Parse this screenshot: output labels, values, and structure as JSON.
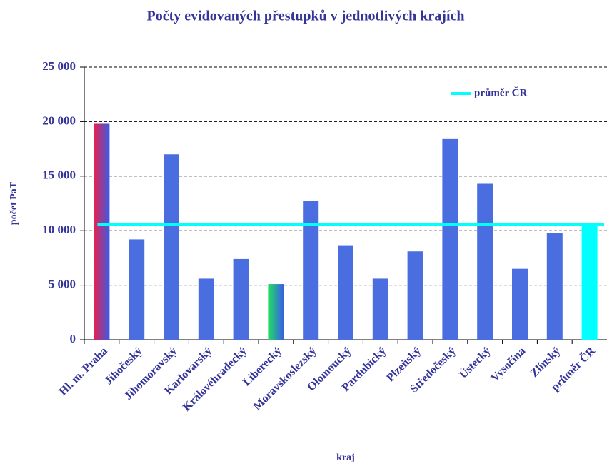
{
  "chart_data": {
    "type": "bar",
    "title": "Počty evidovaných přestupků v jednotlivých krajích",
    "x_label": "kraj",
    "y_label": "počet PaT",
    "categories": [
      "Hl. m. Praha",
      "Jihočeský",
      "Jihomoravský",
      "Karlovarský",
      "Královéhradecký",
      "Liberecký",
      "Moravskoslezský",
      "Olomoucký",
      "Pardubický",
      "Plzeňský",
      "Středočeský",
      "Ústecký",
      "Vysočina",
      "Zlínský",
      "průměr ČR"
    ],
    "values": [
      19800,
      9200,
      17000,
      5600,
      7400,
      5100,
      12700,
      8600,
      5600,
      8100,
      18400,
      14300,
      6500,
      9800,
      10600
    ],
    "colors": [
      [
        "#3a5ae8",
        "#e8204a"
      ],
      "#4a6ee0",
      "#4a6ee0",
      "#4a6ee0",
      "#4a6ee0",
      [
        "#3a5ae8",
        "#20e060"
      ],
      "#4a6ee0",
      "#4a6ee0",
      "#4a6ee0",
      "#4a6ee0",
      "#4a6ee0",
      "#4a6ee0",
      "#4a6ee0",
      "#4a6ee0",
      "#00ffff"
    ],
    "average_line": {
      "name": "průměr ČR",
      "value": 10600,
      "color": "#00ffff"
    },
    "ylim": [
      0,
      25000
    ],
    "yticks": [
      0,
      {
        "value": 5000,
        "label": "5 000"
      },
      {
        "value": 10000,
        "label": "10 000"
      },
      {
        "value": 15000,
        "label": "15 000"
      },
      {
        "value": 20000,
        "label": "20 000"
      },
      {
        "value": 25000,
        "label": "25 000"
      }
    ],
    "grid": true,
    "legend": "upper right"
  }
}
